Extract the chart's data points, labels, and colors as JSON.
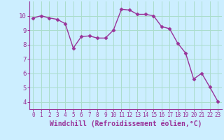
{
  "x": [
    0,
    1,
    2,
    3,
    4,
    5,
    6,
    7,
    8,
    9,
    10,
    11,
    12,
    13,
    14,
    15,
    16,
    17,
    18,
    19,
    20,
    21,
    22,
    23
  ],
  "y": [
    9.85,
    10.0,
    9.85,
    9.75,
    9.45,
    7.75,
    8.55,
    8.6,
    8.45,
    8.45,
    9.0,
    10.45,
    10.4,
    10.1,
    10.1,
    10.0,
    9.25,
    9.1,
    8.1,
    7.4,
    5.6,
    6.0,
    5.05,
    4.05
  ],
  "line_color": "#993399",
  "marker": "D",
  "markersize": 2.5,
  "linewidth": 1.0,
  "bg_color": "#cceeff",
  "grid_color": "#aaddcc",
  "xlabel": "Windchill (Refroidissement éolien,°C)",
  "xlabel_color": "#993399",
  "ylabel_ticks": [
    4,
    5,
    6,
    7,
    8,
    9,
    10
  ],
  "xtick_labels": [
    "0",
    "1",
    "2",
    "3",
    "4",
    "5",
    "6",
    "7",
    "8",
    "9",
    "10",
    "11",
    "12",
    "13",
    "14",
    "15",
    "16",
    "17",
    "18",
    "19",
    "20",
    "21",
    "22",
    "23"
  ],
  "ylim": [
    3.5,
    11.0
  ],
  "xlim": [
    -0.5,
    23.5
  ],
  "font_color": "#993399",
  "tick_fontsize": 5.5,
  "xlabel_fontsize": 7.0
}
